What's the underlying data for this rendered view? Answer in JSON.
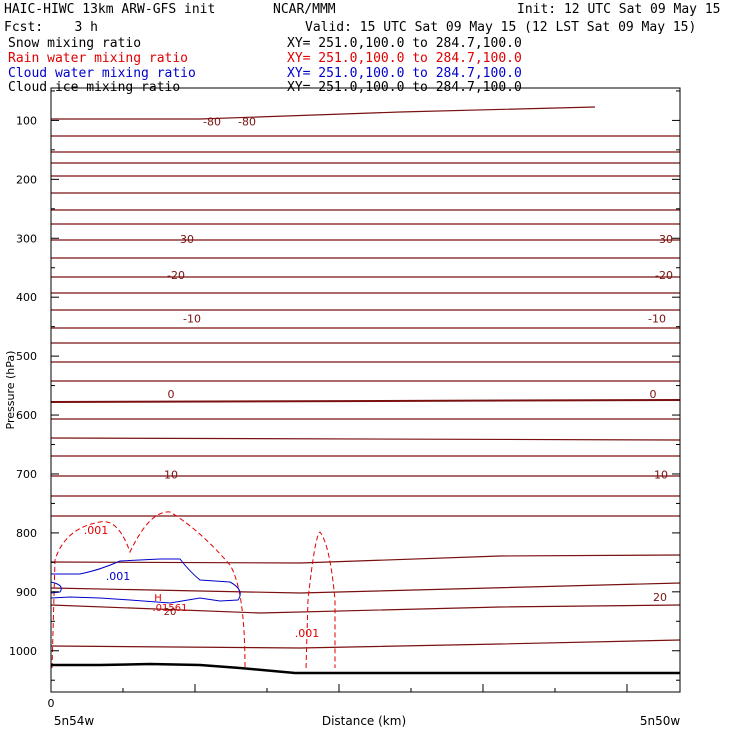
{
  "header": {
    "model": "HAIC-HIWC 13km ARW-GFS init",
    "org": "NCAR/MMM",
    "init": "Init: 12 UTC Sat 09 May 15",
    "fcst": "Fcst:    3 h",
    "valid": "Valid: 15 UTC Sat 09 May 15 (12 LST Sat 09 May 15)"
  },
  "fields": [
    {
      "name": "Snow mixing ratio",
      "xy": "XY= 251.0,100.0 to 284.7,100.0",
      "color": "#000000"
    },
    {
      "name": "Rain water mixing ratio",
      "xy": "XY= 251.0,100.0 to 284.7,100.0",
      "color": "#e00000"
    },
    {
      "name": "Cloud water mixing ratio",
      "xy": "XY= 251.0,100.0 to 284.7,100.0",
      "color": "#0000cc"
    },
    {
      "name": "Cloud ice mixing ratio",
      "xy": "XY= 251.0,100.0 to 284.7,100.0",
      "color": "#000000"
    }
  ],
  "colors": {
    "temperature": "#7a1010",
    "rain": "#e00000",
    "cloud_water": "#0000cc",
    "terrain": "#000000"
  },
  "chart_data": {
    "type": "line",
    "xlabel": "Distance (km)",
    "ylabel": "Pressure (hPa)",
    "x_ticks": [
      "0"
    ],
    "x_end_labels": [
      "5n54w",
      "5n50w"
    ],
    "y_ticks": [
      100,
      200,
      300,
      400,
      500,
      600,
      700,
      800,
      900,
      1000
    ],
    "ylim": [
      1070,
      45
    ],
    "temperature_contours": [
      {
        "label": "-80",
        "pressure": 102
      },
      {
        "label": "-30",
        "pressure": 301
      },
      {
        "label": "-20",
        "pressure": 362
      },
      {
        "label": "-10",
        "pressure": 436
      },
      {
        "label": "0",
        "pressure": 564
      },
      {
        "label": "10",
        "pressure": 701
      },
      {
        "label": "20",
        "pressure": 909
      }
    ],
    "rain_labels": [
      ".001",
      ".001"
    ],
    "cloud_water_labels": [
      ".001"
    ],
    "extrema_labels": [
      "H",
      ".01561",
      "20"
    ]
  }
}
